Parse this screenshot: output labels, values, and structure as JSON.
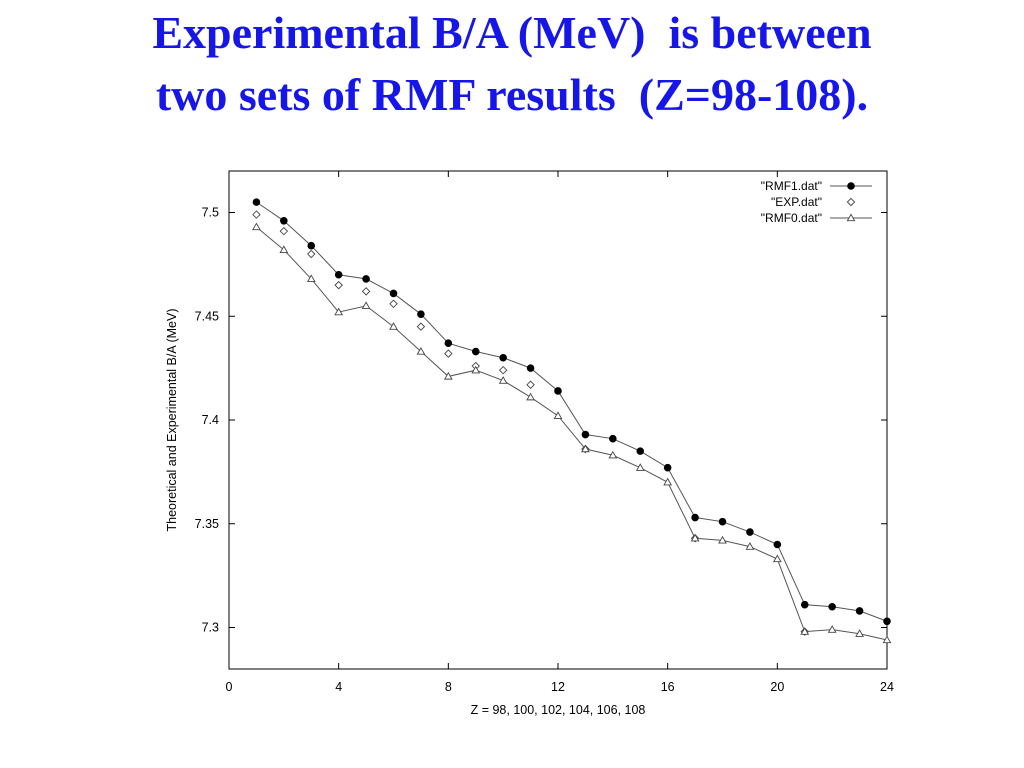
{
  "slide": {
    "title_line1": "Experimental B/A (MeV)  is between",
    "title_line2": "two sets of RMF results  (Z=98-108)."
  },
  "chart_data": {
    "type": "line",
    "xlabel": "Z = 98, 100, 102, 104, 106, 108",
    "ylabel": "Theoretical and Experimental B/A (MeV)",
    "xlim": [
      0,
      24
    ],
    "ylim": [
      7.28,
      7.52
    ],
    "x_ticks": [
      "0",
      "4",
      "8",
      "12",
      "16",
      "20",
      "24"
    ],
    "y_ticks": [
      "7.3",
      "7.35",
      "7.4",
      "7.45",
      "7.5"
    ],
    "grid": false,
    "legend_position": "top-right",
    "x": [
      1,
      2,
      3,
      4,
      5,
      6,
      7,
      8,
      9,
      10,
      11,
      12,
      13,
      14,
      15,
      16,
      17,
      18,
      19,
      20,
      21,
      22,
      23,
      24
    ],
    "series": [
      {
        "name": "\"RMF1.dat\"",
        "marker": "filled-circle",
        "line": true,
        "values": [
          7.505,
          7.496,
          7.484,
          7.47,
          7.468,
          7.461,
          7.451,
          7.437,
          7.433,
          7.43,
          7.425,
          7.414,
          7.393,
          7.391,
          7.385,
          7.377,
          7.353,
          7.351,
          7.346,
          7.34,
          7.311,
          7.31,
          7.308,
          7.303
        ]
      },
      {
        "name": "\"EXP.dat\"",
        "marker": "open-diamond",
        "line": false,
        "values": [
          7.499,
          7.491,
          7.48,
          7.465,
          7.462,
          7.456,
          7.445,
          7.432,
          7.426,
          7.424,
          7.417,
          null,
          7.386,
          null,
          null,
          null,
          7.343,
          null,
          null,
          null,
          7.298,
          null,
          null,
          null
        ]
      },
      {
        "name": "\"RMF0.dat\"",
        "marker": "open-triangle",
        "line": true,
        "values": [
          7.493,
          7.482,
          7.468,
          7.452,
          7.455,
          7.445,
          7.433,
          7.421,
          7.424,
          7.419,
          7.411,
          7.402,
          7.386,
          7.383,
          7.377,
          7.37,
          7.343,
          7.342,
          7.339,
          7.333,
          7.298,
          7.299,
          7.297,
          7.294
        ]
      }
    ]
  }
}
